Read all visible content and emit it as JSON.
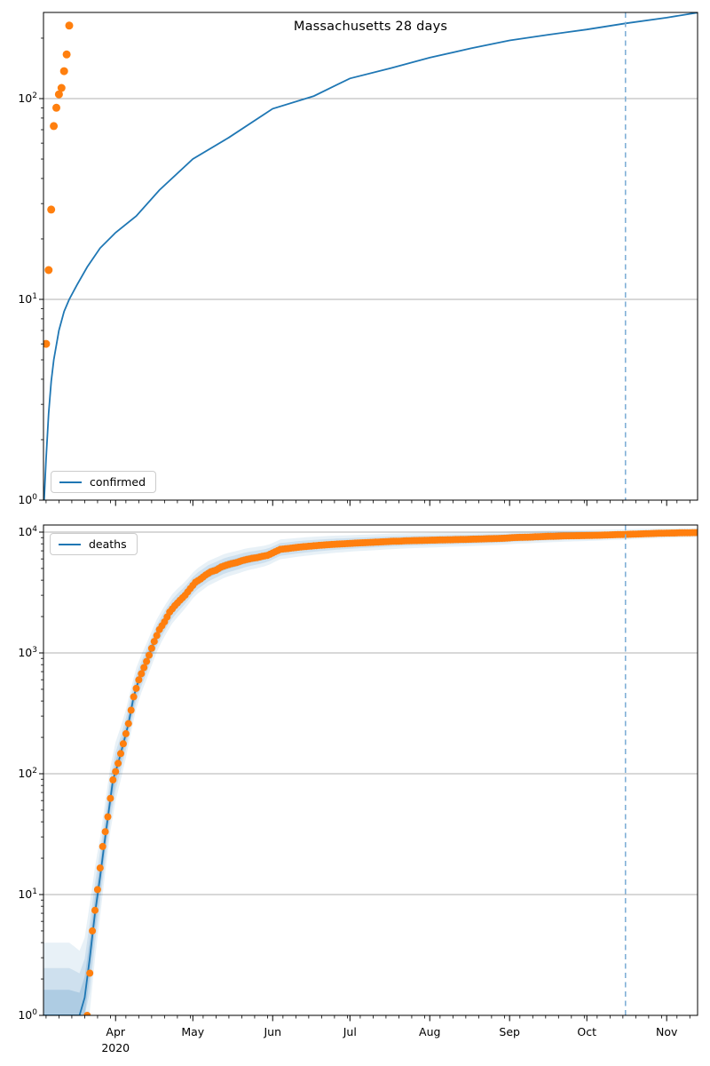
{
  "title": "Massachusetts 28 days",
  "colors": {
    "fit_line": "#1f77b4",
    "data_dots": "#ff7f0e",
    "grid": "#b0b0b0",
    "spine": "#000000",
    "vline": "#7fafd6",
    "band_fill": "#1f77b4",
    "legend_border": "#cccccc"
  },
  "x_axis": {
    "epoch_date": "2020-03-04",
    "end_date": "2020-11-13",
    "year_label": "2020",
    "months": [
      {
        "label": "Apr",
        "day": 28
      },
      {
        "label": "May",
        "day": 58
      },
      {
        "label": "Jun",
        "day": 89
      },
      {
        "label": "Jul",
        "day": 119
      },
      {
        "label": "Aug",
        "day": 150
      },
      {
        "label": "Sep",
        "day": 181
      },
      {
        "label": "Oct",
        "day": 211
      },
      {
        "label": "Nov",
        "day": 242
      }
    ]
  },
  "vline": {
    "date": "2020-10-16",
    "day": 226,
    "style": "dashed"
  },
  "chart_data": [
    {
      "type": "scatter",
      "name": "confirmed-cases-top-panel",
      "title": "Massachusetts 28 days",
      "legend": {
        "label": "confirmed",
        "position": "lower-left"
      },
      "yscale": "log",
      "ylim": [
        1,
        280
      ],
      "y_ticks": [
        "10^0",
        "10^1",
        "10^2"
      ],
      "grid": "horizontal-major",
      "scatter": {
        "days": [
          1,
          2,
          3,
          4,
          5,
          6,
          7,
          8,
          9,
          10
        ],
        "dates_note": "daily confirmed totals, early March 2020",
        "values": [
          6,
          14,
          28,
          73,
          90,
          105,
          113,
          137,
          166,
          231
        ]
      },
      "fit_line": {
        "days": [
          0,
          1,
          2,
          3,
          4,
          6,
          8,
          10,
          13,
          17,
          22,
          28,
          36,
          45,
          58,
          72,
          89,
          105,
          119,
          135,
          150,
          166,
          181,
          196,
          211,
          226,
          242,
          254
        ],
        "values": [
          0.85,
          1.6,
          2.7,
          3.9,
          5.0,
          7.0,
          8.7,
          10.0,
          11.8,
          14.5,
          18,
          21.5,
          26,
          35,
          50,
          64,
          89,
          103,
          126,
          142,
          160,
          178,
          195,
          208,
          221,
          237,
          253,
          268
        ]
      }
    },
    {
      "type": "scatter",
      "name": "deaths-bottom-panel",
      "legend": {
        "label": "deaths",
        "position": "upper-left"
      },
      "yscale": "log",
      "ylim": [
        1,
        11500
      ],
      "y_ticks": [
        "10^0",
        "10^1",
        "10^2",
        "10^3",
        "10^4"
      ],
      "grid": "horizontal-major",
      "scatter_anchors": {
        "days": [
          17,
          19,
          21,
          23,
          25,
          27,
          29,
          31,
          33,
          35,
          37,
          39,
          41,
          43,
          45,
          47,
          49,
          51,
          53,
          55,
          57,
          59,
          61,
          63,
          65,
          67,
          69,
          71,
          73,
          75,
          77,
          79,
          81,
          83,
          85,
          87,
          89,
          92,
          95,
          98,
          101,
          104,
          107,
          110,
          113,
          116,
          119,
          123,
          127,
          131,
          135,
          139,
          143,
          147,
          151,
          155,
          159,
          163,
          167,
          171,
          175,
          179,
          183,
          187,
          191,
          195,
          199,
          203,
          207,
          211,
          215,
          219,
          223,
          227,
          231,
          235,
          239,
          243,
          247,
          251,
          254
        ],
        "values": [
          1,
          5,
          11,
          25,
          44,
          89,
          122,
          177,
          260,
          433,
          599,
          756,
          957,
          1245,
          1560,
          1809,
          2182,
          2460,
          2730,
          3003,
          3405,
          3846,
          4090,
          4420,
          4702,
          4840,
          5141,
          5315,
          5482,
          5592,
          5797,
          5938,
          6066,
          6148,
          6304,
          6416,
          6718,
          7201,
          7316,
          7454,
          7576,
          7665,
          7770,
          7850,
          7932,
          7992,
          8054,
          8149,
          8213,
          8296,
          8380,
          8433,
          8500,
          8529,
          8580,
          8619,
          8662,
          8691,
          8741,
          8790,
          8843,
          8900,
          9024,
          9064,
          9135,
          9210,
          9250,
          9310,
          9340,
          9374,
          9414,
          9475,
          9530,
          9589,
          9658,
          9716,
          9780,
          9820,
          9860,
          9890,
          9910
        ],
        "density": "rendered as one dot per day via log-linear interpolation"
      },
      "fit_line_prefix": {
        "days": [
          0,
          14,
          16,
          18,
          20,
          22,
          24,
          26
        ],
        "values": [
          1,
          1,
          1.4,
          3,
          7,
          14,
          30,
          62
        ]
      },
      "band": {
        "days": [
          0,
          10,
          17,
          21,
          25,
          29,
          33,
          37,
          45,
          57,
          77,
          89,
          119,
          150,
          181,
          211,
          254
        ],
        "outer_factor": [
          4.0,
          4.0,
          3.0,
          2.2,
          1.9,
          1.7,
          1.55,
          1.45,
          1.35,
          1.28,
          1.24,
          1.21,
          1.17,
          1.15,
          1.13,
          1.11,
          1.09
        ],
        "levels": [
          1,
          0.65,
          0.35
        ],
        "opacities": [
          0.1,
          0.13,
          0.18
        ]
      }
    }
  ]
}
